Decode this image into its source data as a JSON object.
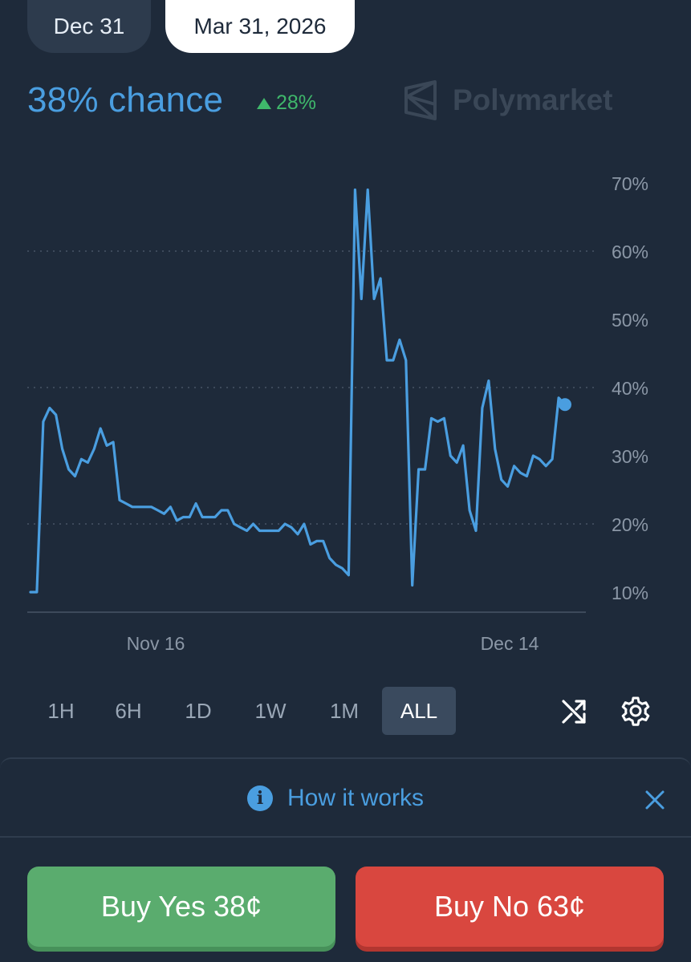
{
  "date_tabs": [
    {
      "label": "Dec 31",
      "active": false
    },
    {
      "label": "Mar 31, 2026",
      "active": true
    }
  ],
  "header": {
    "chance": "38% chance",
    "delta": "28%",
    "delta_direction": "up",
    "brand": "Polymarket"
  },
  "chart_data": {
    "type": "line",
    "y_ticks": [
      "70%",
      "60%",
      "50%",
      "40%",
      "30%",
      "20%",
      "10%"
    ],
    "x_ticks": [
      "Nov 16",
      "Dec 14"
    ],
    "ylim": [
      10,
      70
    ],
    "grid": "dotted at 20%, 40%, 60%",
    "series_color": "#4a9ee0",
    "series": [
      {
        "values": [
          10,
          10,
          35,
          37,
          36,
          31,
          28,
          27,
          29.5,
          29,
          31,
          34,
          31.5,
          32,
          23.5,
          23,
          22.5,
          22.5,
          22.5,
          22.5,
          22,
          21.5,
          22.5,
          20.5,
          21,
          21,
          23,
          21,
          21,
          21,
          22,
          22,
          20,
          19.5,
          19,
          20,
          19,
          19,
          19,
          19,
          20,
          19.5,
          18.5,
          20,
          17,
          17.5,
          17.5,
          15,
          14,
          13.5,
          12.5,
          69,
          53,
          69,
          53,
          56,
          44,
          44,
          47,
          44,
          11,
          28,
          28,
          35.5,
          35,
          35.5,
          30,
          29,
          31.5,
          22,
          19,
          37,
          41,
          31,
          26.5,
          25.5,
          28.5,
          27.5,
          27,
          30,
          29.5,
          28.5,
          29.5,
          38.5,
          37.5
        ]
      }
    ]
  },
  "ranges": [
    {
      "label": "1H",
      "active": false
    },
    {
      "label": "6H",
      "active": false
    },
    {
      "label": "1D",
      "active": false
    },
    {
      "label": "1W",
      "active": false
    },
    {
      "label": "1M",
      "active": false
    },
    {
      "label": "ALL",
      "active": true
    }
  ],
  "tools": {
    "shuffle": "shuffle-icon",
    "settings": "gear-icon"
  },
  "how_it_works": {
    "label": "How it works"
  },
  "buy": {
    "yes": "Buy Yes 38¢",
    "no": "Buy No 63¢"
  },
  "colors": {
    "background": "#1e2a3a",
    "accent": "#4a9ee0",
    "up": "#3fb86b",
    "yes": "#5aac6e",
    "no": "#d9473f"
  }
}
